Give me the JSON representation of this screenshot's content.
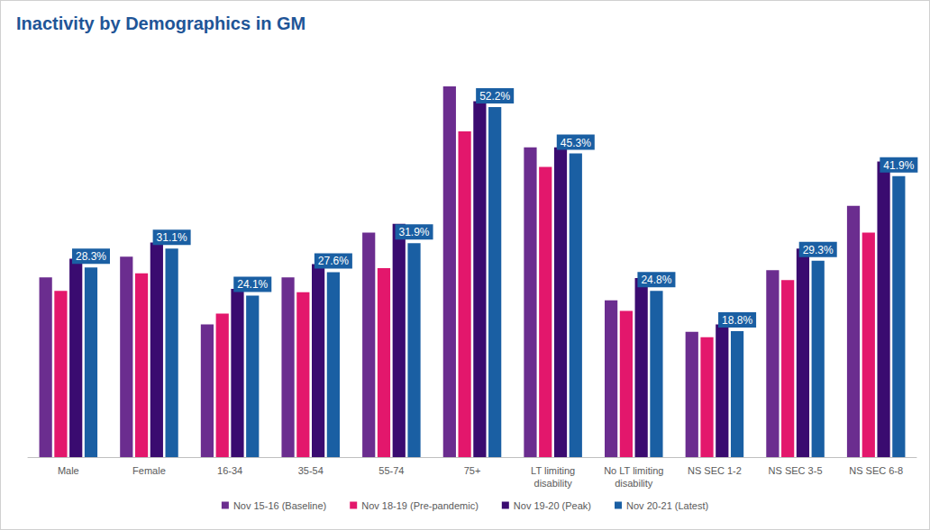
{
  "chart_data": {
    "type": "bar",
    "title": "Inactivity by Demographics in GM",
    "categories": [
      "Male",
      "Female",
      "16-34",
      "35-54",
      "55-74",
      "75+",
      "LT limiting\ndisability",
      "No LT limiting\ndisability",
      "NS SEC 1-2",
      "NS SEC 3-5",
      "NS SEC 6-8"
    ],
    "series": [
      {
        "name": "Nov 15-16 (Baseline)",
        "color": "#6b2d8f",
        "values": [
          26.8,
          29.9,
          19.8,
          26.8,
          33.5,
          55.3,
          46.2,
          23.4,
          18.7,
          27.9,
          37.5
        ]
      },
      {
        "name": "Nov 18-19 (Pre-pandemic)",
        "color": "#e3176c",
        "values": [
          24.8,
          27.4,
          21.4,
          24.6,
          28.2,
          48.6,
          43.3,
          21.8,
          17.9,
          26.4,
          33.5
        ]
      },
      {
        "name": "Nov 19-20 (Peak)",
        "color": "#3a0b70",
        "values": [
          29.6,
          32.0,
          25.1,
          28.8,
          34.8,
          53.1,
          46.2,
          26.7,
          19.8,
          31.1,
          44.1
        ]
      },
      {
        "name": "Nov 20-21 (Latest)",
        "color": "#1a5fa3",
        "data_labels": true,
        "values": [
          28.3,
          31.1,
          24.1,
          27.6,
          31.9,
          52.2,
          45.3,
          24.8,
          18.8,
          29.3,
          41.9
        ],
        "value_labels": [
          "28.3%",
          "31.1%",
          "24.1%",
          "27.6%",
          "31.9%",
          "52.2%",
          "45.3%",
          "24.8%",
          "18.8%",
          "29.3%",
          "41.9%"
        ]
      }
    ],
    "ylim": [
      0,
      60
    ],
    "tick_labels": "x",
    "grid": false,
    "legend": "bottom"
  }
}
